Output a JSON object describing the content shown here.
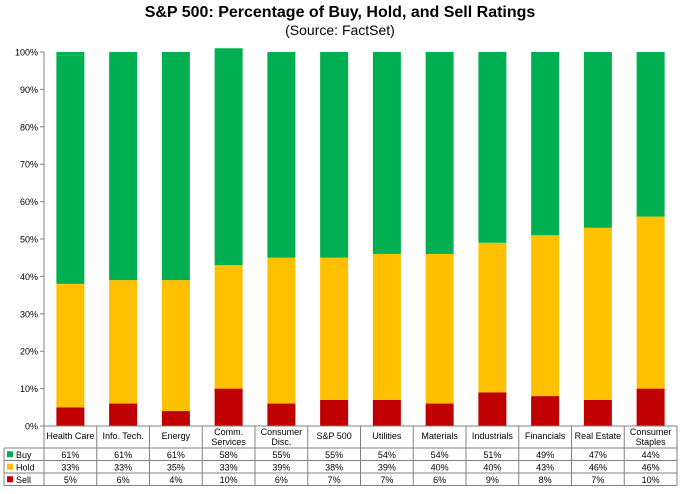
{
  "chart_data": {
    "type": "bar",
    "stacked": true,
    "title": "S&P 500: Percentage of Buy, Hold, and Sell Ratings",
    "subtitle": "(Source: FactSet)",
    "categories": [
      [
        "Health Care"
      ],
      [
        "Info. Tech."
      ],
      [
        "Energy"
      ],
      [
        "Comm.",
        "Services"
      ],
      [
        "Consumer",
        "Disc."
      ],
      [
        "S&P 500"
      ],
      [
        "Utilities"
      ],
      [
        "Materials"
      ],
      [
        "Industrials"
      ],
      [
        "Financials"
      ],
      [
        "Real Estate"
      ],
      [
        "Consumer",
        "Staples"
      ]
    ],
    "ylim": [
      0,
      100
    ],
    "yticks": [
      "0%",
      "10%",
      "20%",
      "30%",
      "40%",
      "50%",
      "60%",
      "70%",
      "80%",
      "90%",
      "100%"
    ],
    "grid": false,
    "legend": "table-left",
    "series": [
      {
        "name": "Buy",
        "color": "#00b050",
        "values": [
          61,
          61,
          61,
          58,
          55,
          55,
          54,
          54,
          51,
          49,
          47,
          44
        ],
        "labels": [
          "61%",
          "61%",
          "61%",
          "58%",
          "55%",
          "55%",
          "54%",
          "54%",
          "51%",
          "49%",
          "47%",
          "44%"
        ]
      },
      {
        "name": "Hold",
        "color": "#ffc000",
        "values": [
          33,
          33,
          35,
          33,
          39,
          38,
          39,
          40,
          40,
          43,
          46,
          46
        ],
        "labels": [
          "33%",
          "33%",
          "35%",
          "33%",
          "39%",
          "38%",
          "39%",
          "40%",
          "40%",
          "43%",
          "46%",
          "46%"
        ]
      },
      {
        "name": "Sell",
        "color": "#c00000",
        "values": [
          5,
          6,
          4,
          10,
          6,
          7,
          7,
          6,
          9,
          8,
          7,
          10
        ],
        "labels": [
          "5%",
          "6%",
          "4%",
          "10%",
          "6%",
          "7%",
          "7%",
          "6%",
          "9%",
          "8%",
          "7%",
          "10%"
        ]
      }
    ]
  }
}
